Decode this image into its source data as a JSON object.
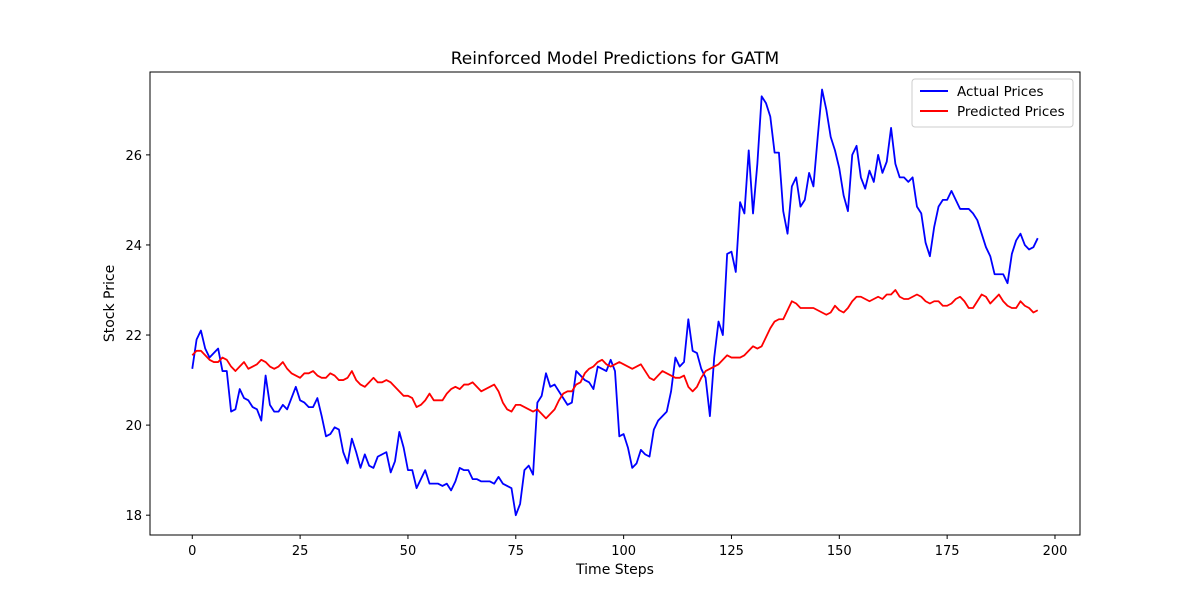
{
  "chart_data": {
    "type": "line",
    "title": "Reinforced Model Predictions for GATM",
    "xlabel": "Time Steps",
    "ylabel": "Stock Price",
    "xlim": [
      -9.8,
      205.8
    ],
    "ylim": [
      17.56,
      27.84
    ],
    "xticks": [
      0,
      25,
      50,
      75,
      100,
      125,
      150,
      175,
      200
    ],
    "yticks": [
      18,
      20,
      22,
      24,
      26
    ],
    "grid": false,
    "legend_position": "top-right",
    "series": [
      {
        "name": "Actual Prices",
        "color": "#0000ff",
        "values": [
          21.25,
          21.9,
          22.1,
          21.7,
          21.5,
          21.6,
          21.7,
          21.2,
          21.2,
          20.3,
          20.35,
          20.8,
          20.6,
          20.55,
          20.4,
          20.35,
          20.1,
          21.1,
          20.45,
          20.3,
          20.3,
          20.45,
          20.35,
          20.6,
          20.85,
          20.55,
          20.5,
          20.4,
          20.4,
          20.6,
          20.2,
          19.75,
          19.8,
          19.95,
          19.9,
          19.4,
          19.15,
          19.7,
          19.4,
          19.05,
          19.35,
          19.1,
          19.05,
          19.3,
          19.35,
          19.4,
          18.95,
          19.2,
          19.85,
          19.5,
          19.0,
          19.0,
          18.6,
          18.8,
          19.0,
          18.7,
          18.7,
          18.7,
          18.65,
          18.7,
          18.55,
          18.75,
          19.05,
          19.0,
          19.0,
          18.8,
          18.8,
          18.75,
          18.75,
          18.75,
          18.7,
          18.85,
          18.7,
          18.65,
          18.6,
          18.0,
          18.25,
          19.0,
          19.1,
          18.9,
          20.5,
          20.65,
          21.15,
          20.85,
          20.9,
          20.75,
          20.6,
          20.45,
          20.5,
          21.2,
          21.1,
          21.0,
          20.95,
          20.8,
          21.3,
          21.25,
          21.2,
          21.45,
          21.2,
          19.75,
          19.8,
          19.5,
          19.05,
          19.15,
          19.45,
          19.35,
          19.3,
          19.9,
          20.1,
          20.2,
          20.3,
          20.75,
          21.5,
          21.3,
          21.4,
          22.35,
          21.65,
          21.6,
          21.25,
          21.05,
          20.2,
          21.5,
          22.3,
          22.0,
          23.8,
          23.85,
          23.4,
          24.95,
          24.7,
          26.1,
          24.7,
          25.8,
          27.3,
          27.15,
          26.85,
          26.05,
          26.05,
          24.75,
          24.25,
          25.3,
          25.5,
          24.85,
          25.0,
          25.6,
          25.3,
          26.4,
          27.45,
          27.0,
          26.4,
          26.1,
          25.7,
          25.1,
          24.75,
          26.0,
          26.2,
          25.5,
          25.25,
          25.65,
          25.4,
          26.0,
          25.6,
          25.85,
          26.6,
          25.8,
          25.5,
          25.5,
          25.4,
          25.5,
          24.85,
          24.7,
          24.05,
          23.75,
          24.4,
          24.85,
          25.0,
          25.0,
          25.2,
          25.0,
          24.8,
          24.8,
          24.8,
          24.7,
          24.55,
          24.25,
          23.95,
          23.75,
          23.35,
          23.35,
          23.35,
          23.15,
          23.8,
          24.1,
          24.25,
          24.0,
          23.9,
          23.95,
          24.15
        ]
      },
      {
        "name": "Predicted Prices",
        "color": "#ff0000",
        "values": [
          21.55,
          21.65,
          21.65,
          21.55,
          21.45,
          21.4,
          21.4,
          21.5,
          21.45,
          21.3,
          21.2,
          21.3,
          21.4,
          21.25,
          21.3,
          21.35,
          21.45,
          21.4,
          21.3,
          21.25,
          21.3,
          21.4,
          21.25,
          21.15,
          21.1,
          21.05,
          21.15,
          21.15,
          21.2,
          21.1,
          21.05,
          21.05,
          21.15,
          21.1,
          21.0,
          21.0,
          21.05,
          21.2,
          21.0,
          20.9,
          20.85,
          20.95,
          21.05,
          20.95,
          20.95,
          21.0,
          20.95,
          20.85,
          20.75,
          20.65,
          20.65,
          20.6,
          20.4,
          20.45,
          20.55,
          20.7,
          20.55,
          20.55,
          20.55,
          20.7,
          20.8,
          20.85,
          20.8,
          20.9,
          20.9,
          20.95,
          20.85,
          20.75,
          20.8,
          20.85,
          20.9,
          20.75,
          20.5,
          20.35,
          20.3,
          20.45,
          20.45,
          20.4,
          20.35,
          20.3,
          20.35,
          20.25,
          20.15,
          20.25,
          20.35,
          20.55,
          20.7,
          20.75,
          20.75,
          20.9,
          20.95,
          21.15,
          21.25,
          21.3,
          21.4,
          21.45,
          21.35,
          21.3,
          21.35,
          21.4,
          21.35,
          21.3,
          21.25,
          21.3,
          21.35,
          21.2,
          21.05,
          21.0,
          21.1,
          21.2,
          21.15,
          21.1,
          21.05,
          21.05,
          21.1,
          20.85,
          20.75,
          20.85,
          21.05,
          21.2,
          21.25,
          21.3,
          21.35,
          21.45,
          21.55,
          21.5,
          21.5,
          21.5,
          21.55,
          21.65,
          21.75,
          21.7,
          21.75,
          21.95,
          22.15,
          22.3,
          22.35,
          22.35,
          22.55,
          22.75,
          22.7,
          22.6,
          22.6,
          22.6,
          22.6,
          22.55,
          22.5,
          22.45,
          22.5,
          22.65,
          22.55,
          22.5,
          22.6,
          22.75,
          22.85,
          22.85,
          22.8,
          22.75,
          22.8,
          22.85,
          22.8,
          22.9,
          22.9,
          23.0,
          22.85,
          22.8,
          22.8,
          22.85,
          22.9,
          22.85,
          22.75,
          22.7,
          22.75,
          22.75,
          22.65,
          22.65,
          22.7,
          22.8,
          22.85,
          22.75,
          22.6,
          22.6,
          22.75,
          22.9,
          22.85,
          22.7,
          22.8,
          22.9,
          22.75,
          22.65,
          22.6,
          22.6,
          22.75,
          22.65,
          22.6,
          22.5,
          22.55
        ]
      }
    ]
  }
}
